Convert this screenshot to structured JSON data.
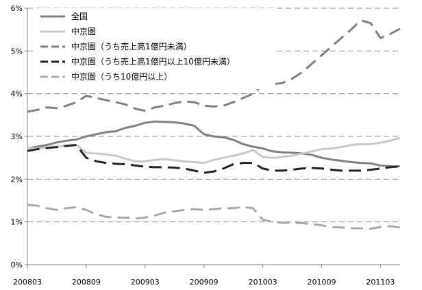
{
  "chart_data": {
    "type": "line",
    "x": [
      "200803",
      "200804",
      "200805",
      "200806",
      "200807",
      "200808",
      "200809",
      "200810",
      "200811",
      "200812",
      "200901",
      "200902",
      "200903",
      "200904",
      "200905",
      "200906",
      "200907",
      "200908",
      "200909",
      "200910",
      "200911",
      "200912",
      "201001",
      "201002",
      "201003",
      "201004",
      "201005",
      "201006",
      "201007",
      "201008",
      "201009",
      "201010",
      "201011",
      "201012",
      "201101",
      "201102",
      "201103",
      "201104",
      "201105"
    ],
    "x_tick_labels": [
      "200803",
      "200809",
      "200903",
      "200909",
      "201003",
      "201009",
      "201103"
    ],
    "y_tick_labels": [
      "0%",
      "1%",
      "2%",
      "3%",
      "4%",
      "5%",
      "6%"
    ],
    "ylim": [
      0,
      6
    ],
    "y_unit": "%",
    "grid": "horizontal dashed",
    "legend_position": "top-left",
    "series": [
      {
        "name": "全国",
        "style": "solid",
        "color": "#808080",
        "values": [
          2.72,
          2.76,
          2.8,
          2.86,
          2.9,
          2.93,
          3.0,
          3.05,
          3.1,
          3.12,
          3.2,
          3.25,
          3.32,
          3.35,
          3.34,
          3.33,
          3.3,
          3.25,
          3.05,
          3.0,
          2.98,
          2.92,
          2.82,
          2.76,
          2.72,
          2.65,
          2.63,
          2.62,
          2.6,
          2.57,
          2.5,
          2.46,
          2.43,
          2.4,
          2.38,
          2.37,
          2.32,
          2.3,
          2.3
        ]
      },
      {
        "name": "中京圏",
        "style": "solid",
        "color": "#c8c8c8",
        "values": [
          2.72,
          2.72,
          2.74,
          2.76,
          2.79,
          2.8,
          2.62,
          2.6,
          2.58,
          2.55,
          2.48,
          2.42,
          2.42,
          2.45,
          2.47,
          2.44,
          2.42,
          2.4,
          2.38,
          2.45,
          2.5,
          2.55,
          2.6,
          2.68,
          2.52,
          2.5,
          2.52,
          2.55,
          2.6,
          2.65,
          2.7,
          2.72,
          2.75,
          2.8,
          2.82,
          2.82,
          2.85,
          2.9,
          2.97
        ]
      },
      {
        "name": "中京圏（うち売上高1億円未満）",
        "style": "dashed",
        "color": "#808080",
        "values": [
          3.58,
          3.62,
          3.68,
          3.66,
          3.72,
          3.8,
          3.95,
          3.9,
          3.85,
          3.8,
          3.75,
          3.65,
          3.6,
          3.68,
          3.72,
          3.78,
          3.82,
          3.8,
          3.72,
          3.7,
          3.72,
          3.8,
          3.9,
          4.0,
          4.2,
          4.22,
          4.25,
          4.35,
          4.5,
          4.7,
          4.9,
          5.1,
          5.3,
          5.5,
          5.72,
          5.65,
          5.3,
          5.4,
          5.52
        ]
      },
      {
        "name": "中京圏（うち売上高1億円以上10億円未満）",
        "style": "dashed",
        "color": "#222222",
        "values": [
          2.66,
          2.7,
          2.73,
          2.75,
          2.78,
          2.8,
          2.5,
          2.42,
          2.38,
          2.36,
          2.35,
          2.32,
          2.29,
          2.28,
          2.28,
          2.27,
          2.25,
          2.2,
          2.15,
          2.18,
          2.25,
          2.35,
          2.38,
          2.38,
          2.25,
          2.2,
          2.2,
          2.22,
          2.25,
          2.26,
          2.25,
          2.22,
          2.2,
          2.2,
          2.2,
          2.22,
          2.25,
          2.28,
          2.3
        ]
      },
      {
        "name": "中京圏（うち10億円以上）",
        "style": "dashed",
        "color": "#a8a8a8",
        "values": [
          1.4,
          1.38,
          1.32,
          1.28,
          1.32,
          1.35,
          1.28,
          1.18,
          1.12,
          1.1,
          1.1,
          1.08,
          1.1,
          1.15,
          1.22,
          1.25,
          1.28,
          1.3,
          1.28,
          1.3,
          1.32,
          1.32,
          1.35,
          1.32,
          1.05,
          1.0,
          0.98,
          0.98,
          0.97,
          0.95,
          0.92,
          0.88,
          0.87,
          0.85,
          0.85,
          0.84,
          0.88,
          0.9,
          0.87
        ]
      }
    ]
  }
}
